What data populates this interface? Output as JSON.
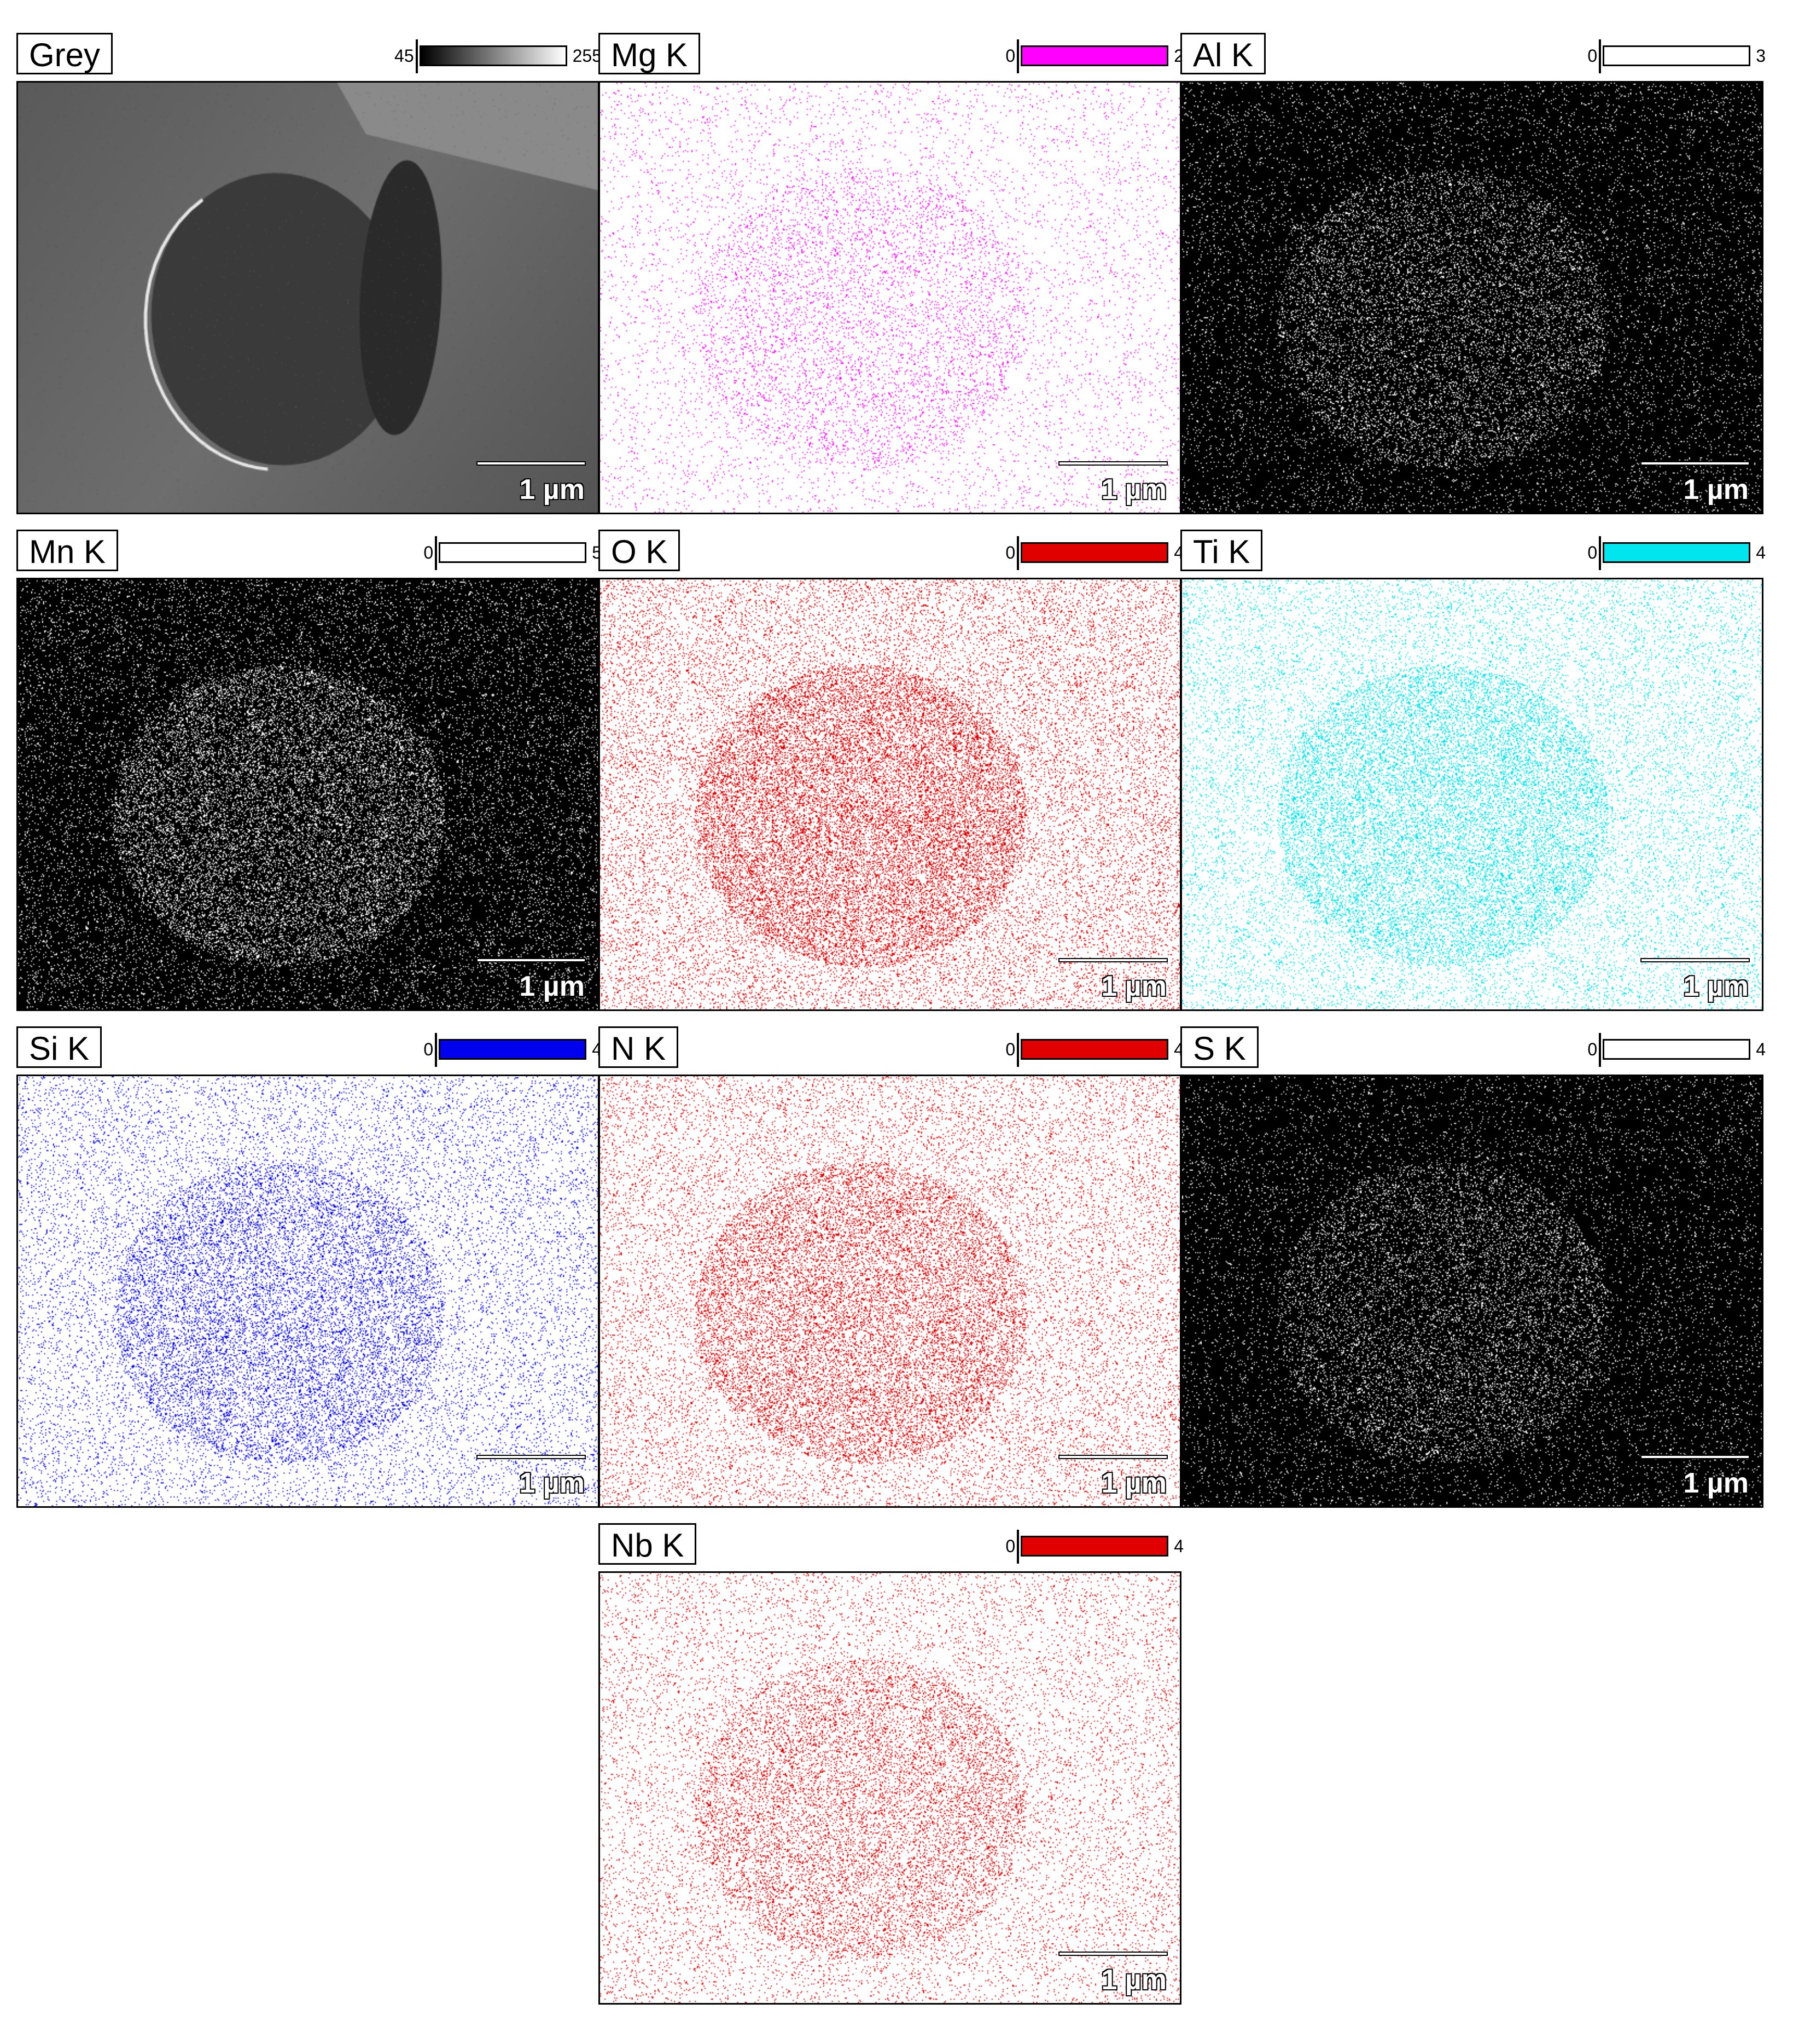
{
  "panels": [
    {
      "label": "Grey",
      "scale_min": "45",
      "scale_max": "255",
      "scale_bar": "1 µm",
      "color": "#808080",
      "bg": "sem",
      "density": 0.0
    },
    {
      "label": "Mg K",
      "scale_min": "0",
      "scale_max": "2",
      "scale_bar": "1 µm",
      "color": "#ff00ff",
      "bg": "#ffffff",
      "density": 0.06
    },
    {
      "label": "Al K",
      "scale_min": "0",
      "scale_max": "3",
      "scale_bar": "1 µm",
      "color": "#ffffff",
      "bg": "#000000",
      "density": 0.1
    },
    {
      "label": "Mn K",
      "scale_min": "0",
      "scale_max": "5",
      "scale_bar": "1 µm",
      "color": "#ffffff",
      "bg": "#000000",
      "density": 0.16
    },
    {
      "label": "O K",
      "scale_min": "0",
      "scale_max": "4",
      "scale_bar": "1 µm",
      "color": "#e00000",
      "bg": "#ffffff",
      "density": 0.22
    },
    {
      "label": "Ti K",
      "scale_min": "0",
      "scale_max": "4",
      "scale_bar": "1 µm",
      "color": "#00e5ee",
      "bg": "#ffffff",
      "density": 0.18
    },
    {
      "label": "Si K",
      "scale_min": "0",
      "scale_max": "4",
      "scale_bar": "1 µm",
      "color": "#0000ee",
      "bg": "#ffffff",
      "density": 0.14
    },
    {
      "label": "N K",
      "scale_min": "0",
      "scale_max": "4",
      "scale_bar": "1 µm",
      "color": "#e00000",
      "bg": "#ffffff",
      "density": 0.17
    },
    {
      "label": "S K",
      "scale_min": "0",
      "scale_max": "4",
      "scale_bar": "1 µm",
      "color": "#ffffff",
      "bg": "#000000",
      "density": 0.1
    },
    {
      "label": "Nb K",
      "scale_min": "0",
      "scale_max": "4",
      "scale_bar": "1 µm",
      "color": "#e00000",
      "bg": "#ffffff",
      "density": 0.12
    }
  ]
}
